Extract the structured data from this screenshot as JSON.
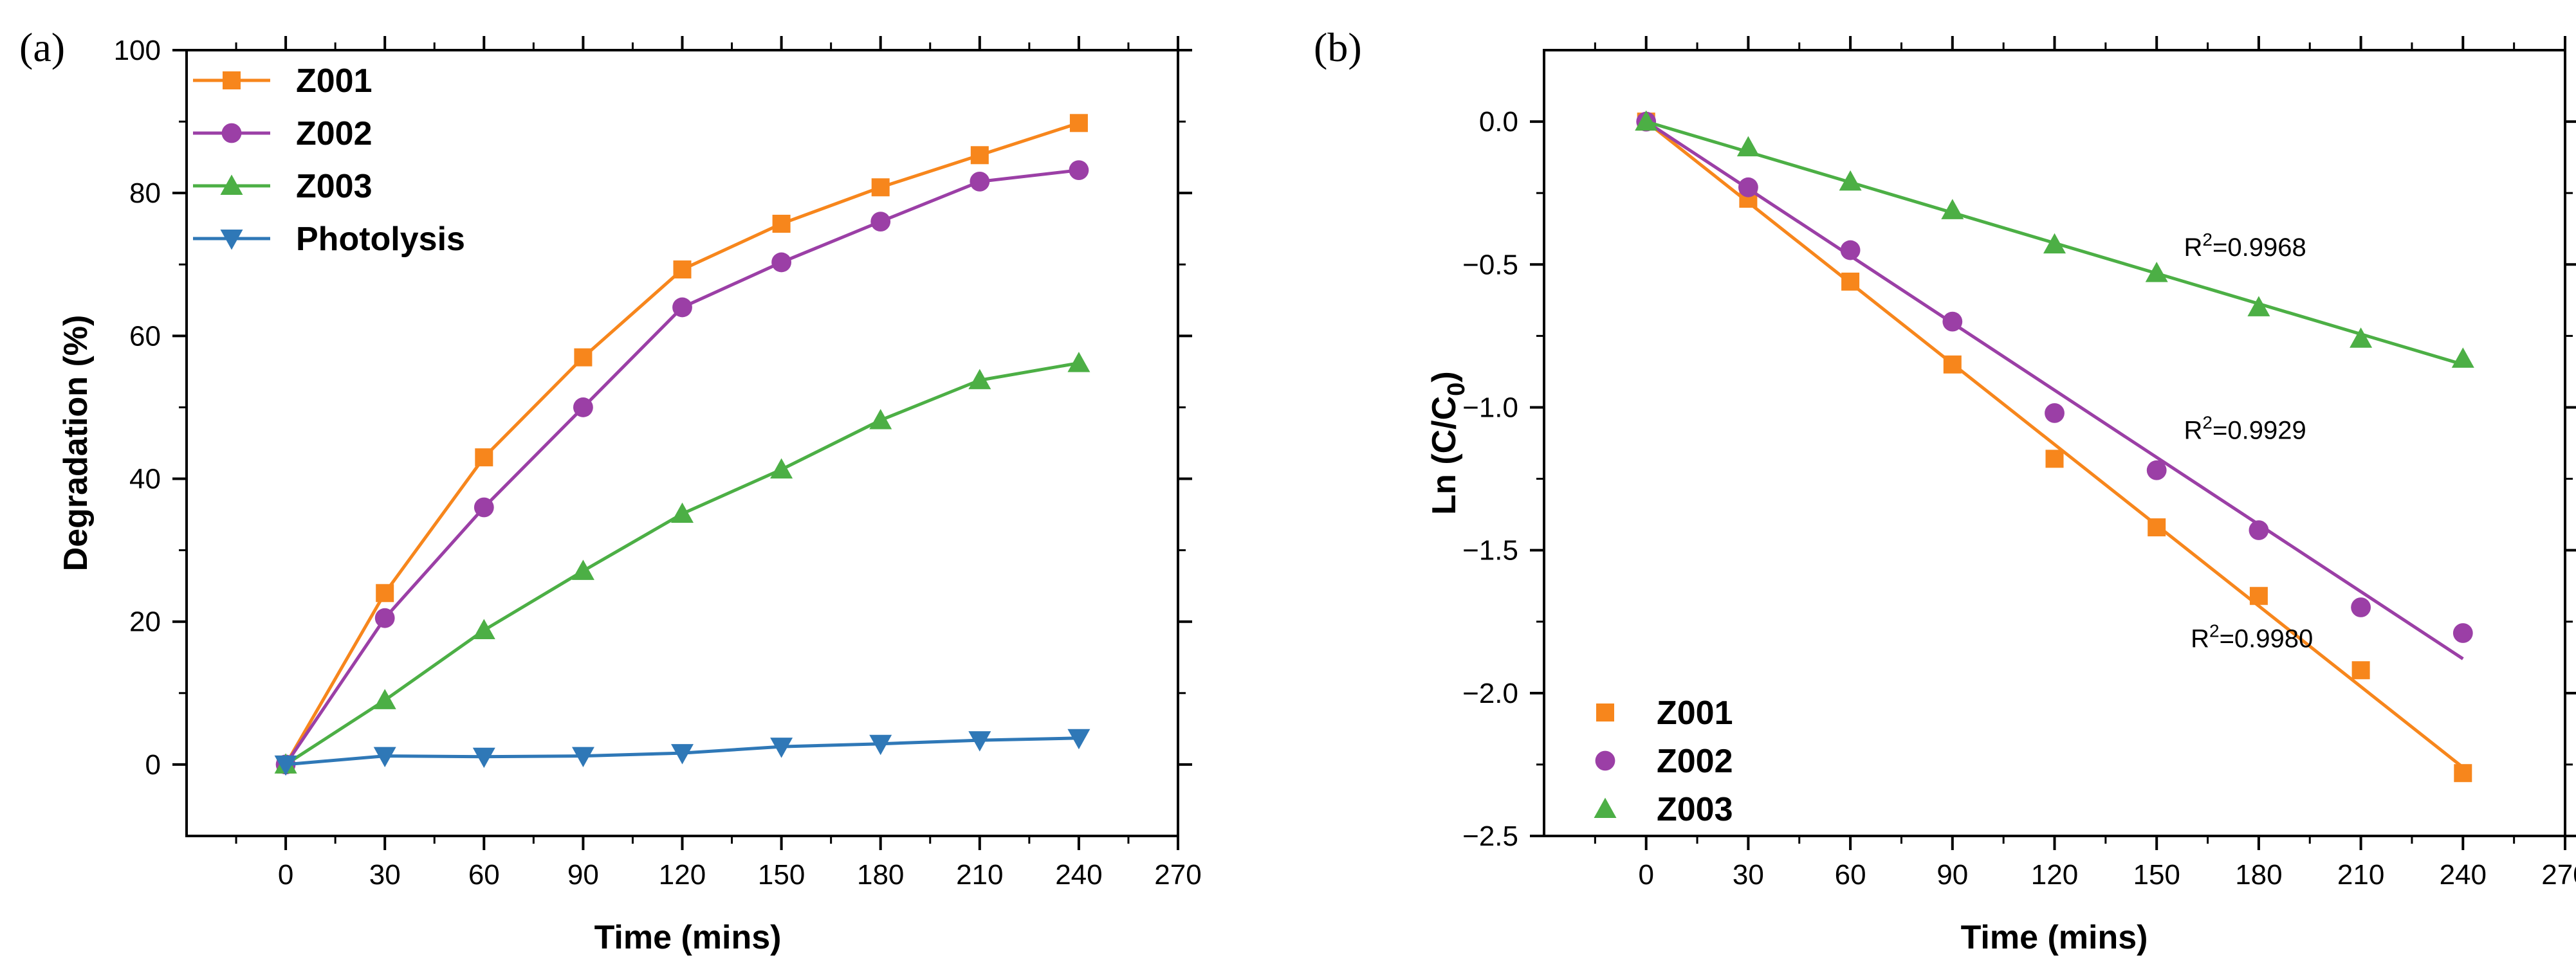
{
  "chart_data": [
    {
      "type": "line",
      "panel_label": "(a)",
      "title": "",
      "xlabel": "Time (mins)",
      "ylabel": "Degradation (%)",
      "xlim": [
        -30,
        270
      ],
      "ylim": [
        -10,
        100
      ],
      "x_ticks": [
        0,
        30,
        60,
        90,
        120,
        150,
        180,
        210,
        240,
        270
      ],
      "y_ticks": [
        0,
        20,
        40,
        60,
        80,
        100
      ],
      "legend_position": "top-left",
      "series": [
        {
          "name": "Z001",
          "color": "#F7861C",
          "marker": "square",
          "x": [
            0,
            30,
            60,
            90,
            120,
            150,
            180,
            210,
            240
          ],
          "y": [
            0,
            24,
            43,
            57,
            69.3,
            75.7,
            80.8,
            85.3,
            89.8
          ]
        },
        {
          "name": "Z002",
          "color": "#9B3FA6",
          "marker": "circle",
          "x": [
            0,
            30,
            60,
            90,
            120,
            150,
            180,
            210,
            240
          ],
          "y": [
            0,
            20.5,
            36,
            50,
            64,
            70.3,
            76,
            81.6,
            83.2
          ]
        },
        {
          "name": "Z003",
          "color": "#4CAF45",
          "marker": "triangle-up",
          "x": [
            0,
            30,
            60,
            90,
            120,
            150,
            180,
            210,
            240
          ],
          "y": [
            0,
            9,
            18.8,
            27.1,
            35.1,
            41.3,
            48.2,
            53.8,
            56.2
          ]
        },
        {
          "name": "Photolysis",
          "color": "#2F78B7",
          "marker": "triangle-down",
          "x": [
            0,
            30,
            60,
            90,
            120,
            150,
            180,
            210,
            240
          ],
          "y": [
            0,
            1.2,
            1.1,
            1.2,
            1.6,
            2.5,
            2.9,
            3.4,
            3.7
          ]
        }
      ]
    },
    {
      "type": "scatter",
      "panel_label": "(b)",
      "title": "",
      "xlabel": "Time (mins)",
      "ylabel_main": "Ln (C/C",
      "ylabel_sub": "0",
      "ylabel_close": ")",
      "xlim": [
        -30,
        270
      ],
      "ylim": [
        -2.5,
        0.25
      ],
      "x_ticks": [
        0,
        30,
        60,
        90,
        120,
        150,
        180,
        210,
        240,
        270
      ],
      "y_ticks": [
        0.0,
        -0.5,
        -1.0,
        -1.5,
        -2.0,
        -2.5
      ],
      "y_tick_labels": [
        "0.0",
        "−0.5",
        "−1.0",
        "−1.5",
        "−2.0",
        "−2.5"
      ],
      "legend_position": "bottom-left",
      "series": [
        {
          "name": "Z001",
          "color": "#F7861C",
          "marker": "square",
          "x": [
            0,
            30,
            60,
            90,
            120,
            150,
            180,
            210,
            240
          ],
          "y": [
            0,
            -0.27,
            -0.56,
            -0.85,
            -1.18,
            -1.42,
            -1.66,
            -1.92,
            -2.28
          ],
          "fit": {
            "x": [
              0,
              240
            ],
            "y": [
              0,
              -2.26
            ]
          },
          "r2_text": "=0.9980",
          "r2_at": [
            160,
            -1.84
          ]
        },
        {
          "name": "Z002",
          "color": "#9B3FA6",
          "marker": "circle",
          "x": [
            0,
            30,
            60,
            90,
            120,
            150,
            180,
            210,
            240
          ],
          "y": [
            0,
            -0.23,
            -0.45,
            -0.7,
            -1.02,
            -1.22,
            -1.43,
            -1.7,
            -1.79
          ],
          "fit": {
            "x": [
              0,
              240
            ],
            "y": [
              0,
              -1.88
            ]
          },
          "r2_text": "=0.9929",
          "r2_at": [
            158,
            -1.11
          ]
        },
        {
          "name": "Z003",
          "color": "#4CAF45",
          "marker": "triangle-up",
          "x": [
            0,
            30,
            60,
            90,
            120,
            150,
            180,
            210,
            240
          ],
          "y": [
            0,
            -0.09,
            -0.21,
            -0.31,
            -0.43,
            -0.53,
            -0.65,
            -0.76,
            -0.83
          ],
          "fit": {
            "x": [
              0,
              240
            ],
            "y": [
              0,
              -0.85
            ]
          },
          "r2_text": "=0.9968",
          "r2_at": [
            158,
            -0.47
          ]
        }
      ],
      "r2_prefix": "R",
      "r2_sup": "2"
    }
  ]
}
